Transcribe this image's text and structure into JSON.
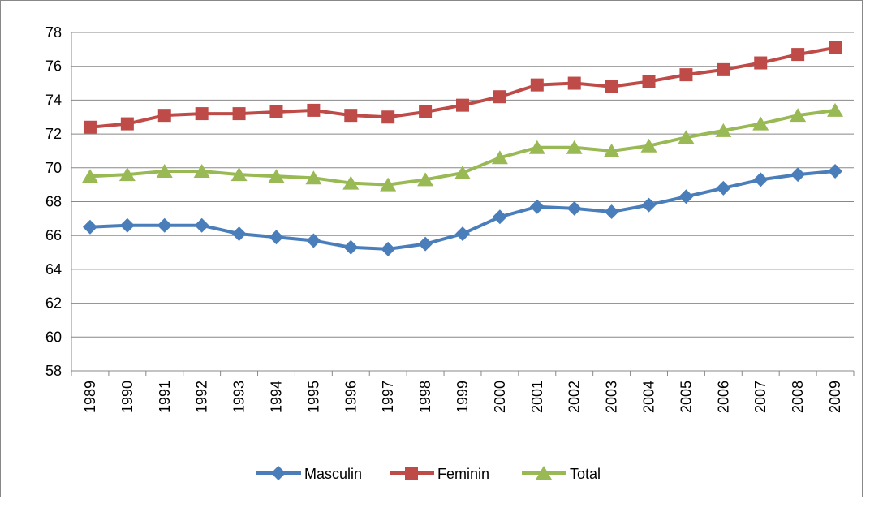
{
  "chart_data": {
    "type": "line",
    "categories": [
      "1989",
      "1990",
      "1991",
      "1992",
      "1993",
      "1994",
      "1995",
      "1996",
      "1997",
      "1998",
      "1999",
      "2000",
      "2001",
      "2002",
      "2003",
      "2004",
      "2005",
      "2006",
      "2007",
      "2008",
      "2009"
    ],
    "series": [
      {
        "name": "Masculin",
        "color": "#4a7ebb",
        "marker": "diamond",
        "values": [
          66.5,
          66.6,
          66.6,
          66.6,
          66.1,
          65.9,
          65.7,
          65.3,
          65.2,
          65.5,
          66.1,
          67.1,
          67.7,
          67.6,
          67.4,
          67.8,
          68.3,
          68.8,
          69.3,
          69.6,
          69.8
        ]
      },
      {
        "name": "Feminin",
        "color": "#be4b48",
        "marker": "square",
        "values": [
          72.4,
          72.6,
          73.1,
          73.2,
          73.2,
          73.3,
          73.4,
          73.1,
          73.0,
          73.3,
          73.7,
          74.2,
          74.9,
          75.0,
          74.8,
          75.1,
          75.5,
          75.8,
          76.2,
          76.7,
          77.1
        ]
      },
      {
        "name": "Total",
        "color": "#98b954",
        "marker": "triangle",
        "values": [
          69.5,
          69.6,
          69.8,
          69.8,
          69.6,
          69.5,
          69.4,
          69.1,
          69.0,
          69.3,
          69.7,
          70.6,
          71.2,
          71.2,
          71.0,
          71.3,
          71.8,
          72.2,
          72.6,
          73.1,
          73.4
        ]
      }
    ],
    "ylim": [
      58,
      78
    ],
    "yticks": [
      58,
      60,
      62,
      64,
      66,
      68,
      70,
      72,
      74,
      76,
      78
    ],
    "grid": true,
    "legend": "bottom"
  }
}
